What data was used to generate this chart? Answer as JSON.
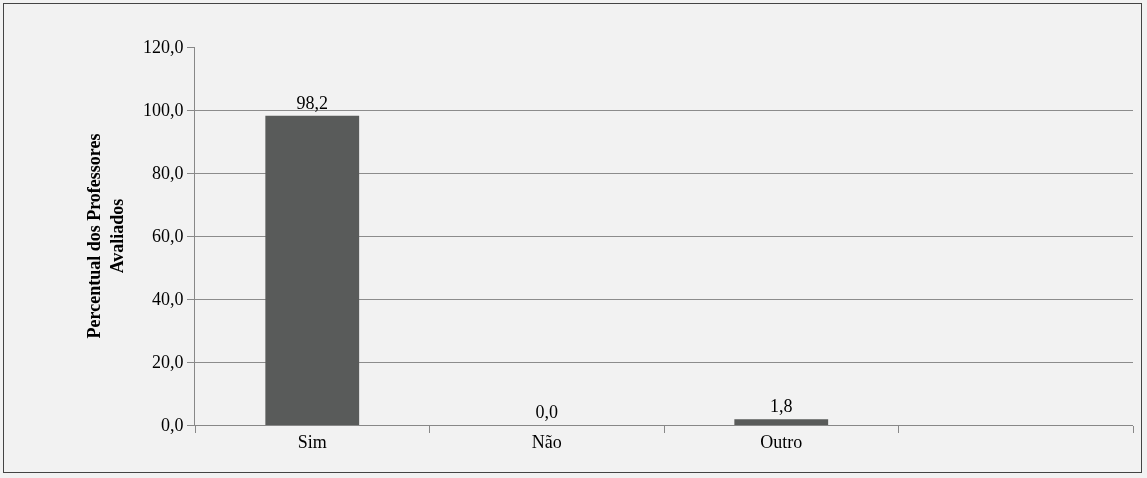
{
  "chart_data": {
    "type": "bar",
    "ylabel": "Percentual dos Professores Avaliados",
    "categories": [
      "Sim",
      "Não",
      "Outro",
      null
    ],
    "values": [
      98.2,
      0.0,
      1.8,
      null
    ],
    "value_labels": [
      "98,2",
      "0,0",
      "1,8",
      null
    ],
    "color": "#595b5a",
    "ylim": [
      0,
      120
    ],
    "yticks": [
      {
        "value": 0,
        "label": "0,0"
      },
      {
        "value": 20,
        "label": "20,0"
      },
      {
        "value": 40,
        "label": "40,0"
      },
      {
        "value": 60,
        "label": "60,0"
      },
      {
        "value": 80,
        "label": "80,0"
      },
      {
        "value": 100,
        "label": "100,0"
      },
      {
        "value": 120,
        "label": "120,0"
      }
    ],
    "grid": "y"
  }
}
